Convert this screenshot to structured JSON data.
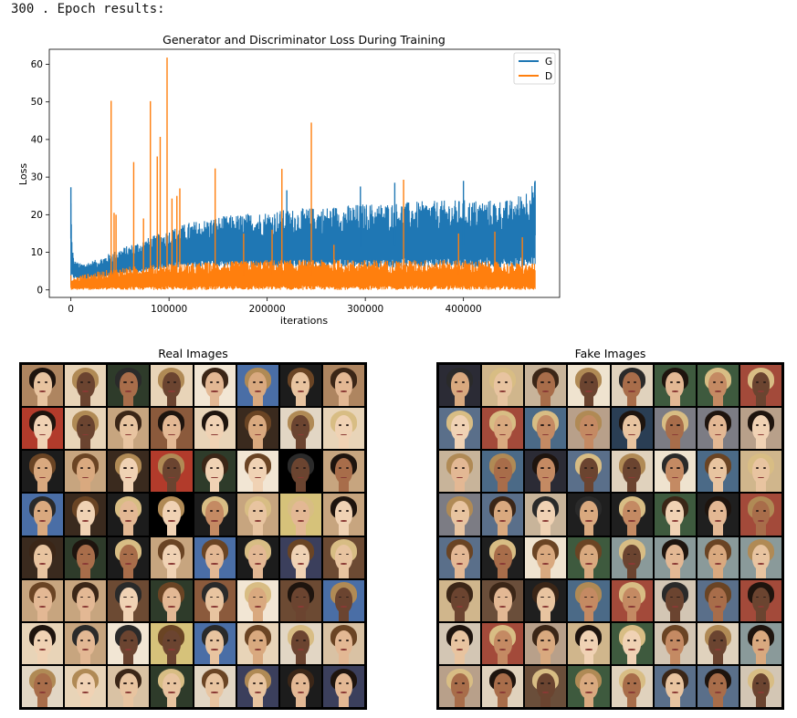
{
  "header": {
    "text": "300 . Epoch results:"
  },
  "chart_data": {
    "type": "line",
    "title": "Generator and Discriminator Loss During Training",
    "xlabel": "iterations",
    "ylabel": "Loss",
    "xlim": [
      -22000,
      498000
    ],
    "ylim": [
      -2,
      64
    ],
    "x_ticks": [
      0,
      100000,
      200000,
      300000,
      400000
    ],
    "y_ticks": [
      0,
      10,
      20,
      30,
      40,
      50,
      60
    ],
    "x_tick_labels": [
      "0",
      "100000",
      "200000",
      "300000",
      "400000"
    ],
    "y_tick_labels": [
      "0",
      "10",
      "20",
      "30",
      "40",
      "50",
      "60"
    ],
    "legend": "top-right",
    "grid": false,
    "series": [
      {
        "name": "G",
        "color": "#1f77b4",
        "x": [
          0,
          1000,
          3000,
          10000,
          25000,
          50000,
          80000,
          100000,
          120000,
          150000,
          200000,
          250000,
          300000,
          350000,
          400000,
          450000,
          473000
        ],
        "y_upper": [
          27.3,
          14.5,
          8,
          7,
          8,
          11,
          14,
          16,
          18,
          19.5,
          21,
          22,
          23,
          23.5,
          24,
          24,
          29
        ],
        "y_lower": [
          0,
          3,
          3,
          3,
          3,
          4,
          5,
          6,
          6,
          6,
          6,
          6,
          6,
          6,
          6,
          6,
          6
        ],
        "spikes": [
          {
            "x": 0,
            "y": 27.3
          },
          {
            "x": 220000,
            "y": 26.5
          },
          {
            "x": 295000,
            "y": 27.5
          },
          {
            "x": 330000,
            "y": 28.5
          },
          {
            "x": 400000,
            "y": 29
          },
          {
            "x": 473000,
            "y": 29
          }
        ]
      },
      {
        "name": "D",
        "color": "#ff7f0e",
        "x": [
          0,
          1000,
          10000,
          50000,
          100000,
          200000,
          300000,
          400000,
          473000
        ],
        "y_upper": [
          4,
          3,
          4,
          6,
          7,
          8,
          8,
          8,
          7
        ],
        "y_lower": [
          0,
          0,
          0,
          0,
          0,
          0,
          0,
          0,
          0
        ],
        "spikes": [
          {
            "x": 41000,
            "y": 50.3
          },
          {
            "x": 44000,
            "y": 20.5
          },
          {
            "x": 46000,
            "y": 20
          },
          {
            "x": 64000,
            "y": 34
          },
          {
            "x": 74000,
            "y": 19
          },
          {
            "x": 81000,
            "y": 50.2
          },
          {
            "x": 88000,
            "y": 35.5
          },
          {
            "x": 91000,
            "y": 40.7
          },
          {
            "x": 98000,
            "y": 61.8
          },
          {
            "x": 103000,
            "y": 24.3
          },
          {
            "x": 108000,
            "y": 25
          },
          {
            "x": 111000,
            "y": 27
          },
          {
            "x": 147000,
            "y": 32.3
          },
          {
            "x": 176000,
            "y": 15
          },
          {
            "x": 205000,
            "y": 16
          },
          {
            "x": 215000,
            "y": 32.2
          },
          {
            "x": 245000,
            "y": 44.5
          },
          {
            "x": 268000,
            "y": 12
          },
          {
            "x": 339000,
            "y": 29.3
          },
          {
            "x": 395000,
            "y": 15
          },
          {
            "x": 432000,
            "y": 15.5
          },
          {
            "x": 460000,
            "y": 14
          }
        ]
      }
    ]
  },
  "real_grid": {
    "title": "Real Images",
    "palette": [
      "#000000",
      "#6c4a33",
      "#d9c2a4",
      "#3a2a1e",
      "#ae8560",
      "#1c1c1c",
      "#c7a57f",
      "#4a6ea6",
      "#e2d6c4",
      "#2e3b2a",
      "#8b5a3c",
      "#e8d4b8",
      "#b23b2b",
      "#d6c27a",
      "#3b3f5c",
      "#f2e6d4"
    ]
  },
  "fake_grid": {
    "title": "Fake Images",
    "palette": [
      "#d3c6b4",
      "#8a9a9a",
      "#1f1f1f",
      "#4b6a87",
      "#c8b49a",
      "#6a4e3a",
      "#2a3e54",
      "#e0d2bd",
      "#3e5a3e",
      "#a34a3a",
      "#7c7c84",
      "#d0b68c",
      "#2b2b35",
      "#b8a08a",
      "#5a6f8a",
      "#efe3cf"
    ]
  }
}
